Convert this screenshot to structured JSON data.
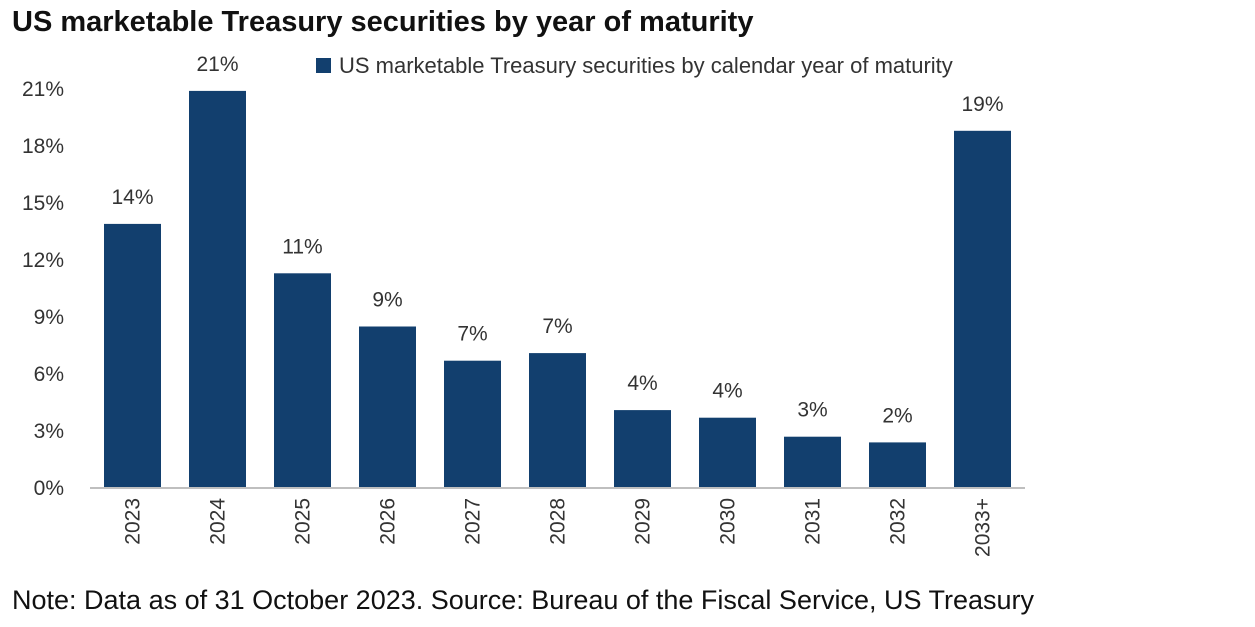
{
  "title": "US marketable Treasury securities by year of maturity",
  "note": "Note: Data as of 31 October 2023. Source: Bureau of the Fiscal Service, US Treasury",
  "colors": {
    "bar": "#123F6E",
    "axis": "#bfbfbf"
  },
  "chart_data": {
    "type": "bar",
    "title": "US marketable Treasury securities by year of maturity",
    "categories": [
      "2023",
      "2024",
      "2025",
      "2026",
      "2027",
      "2028",
      "2029",
      "2030",
      "2031",
      "2032",
      "2033+"
    ],
    "series": [
      {
        "name": "US marketable Treasury securities by calendar year of maturity",
        "values": [
          13.9,
          20.9,
          11.3,
          8.5,
          6.7,
          7.1,
          4.1,
          3.7,
          2.7,
          2.4,
          18.8
        ],
        "data_labels": [
          "14%",
          "21%",
          "11%",
          "9%",
          "7%",
          "7%",
          "4%",
          "4%",
          "3%",
          "2%",
          "19%"
        ]
      }
    ],
    "y_ticks": [
      "0%",
      "3%",
      "6%",
      "9%",
      "12%",
      "15%",
      "18%",
      "21%"
    ],
    "ylim": [
      0,
      21
    ],
    "grid": false,
    "legend_position": "top-center"
  }
}
